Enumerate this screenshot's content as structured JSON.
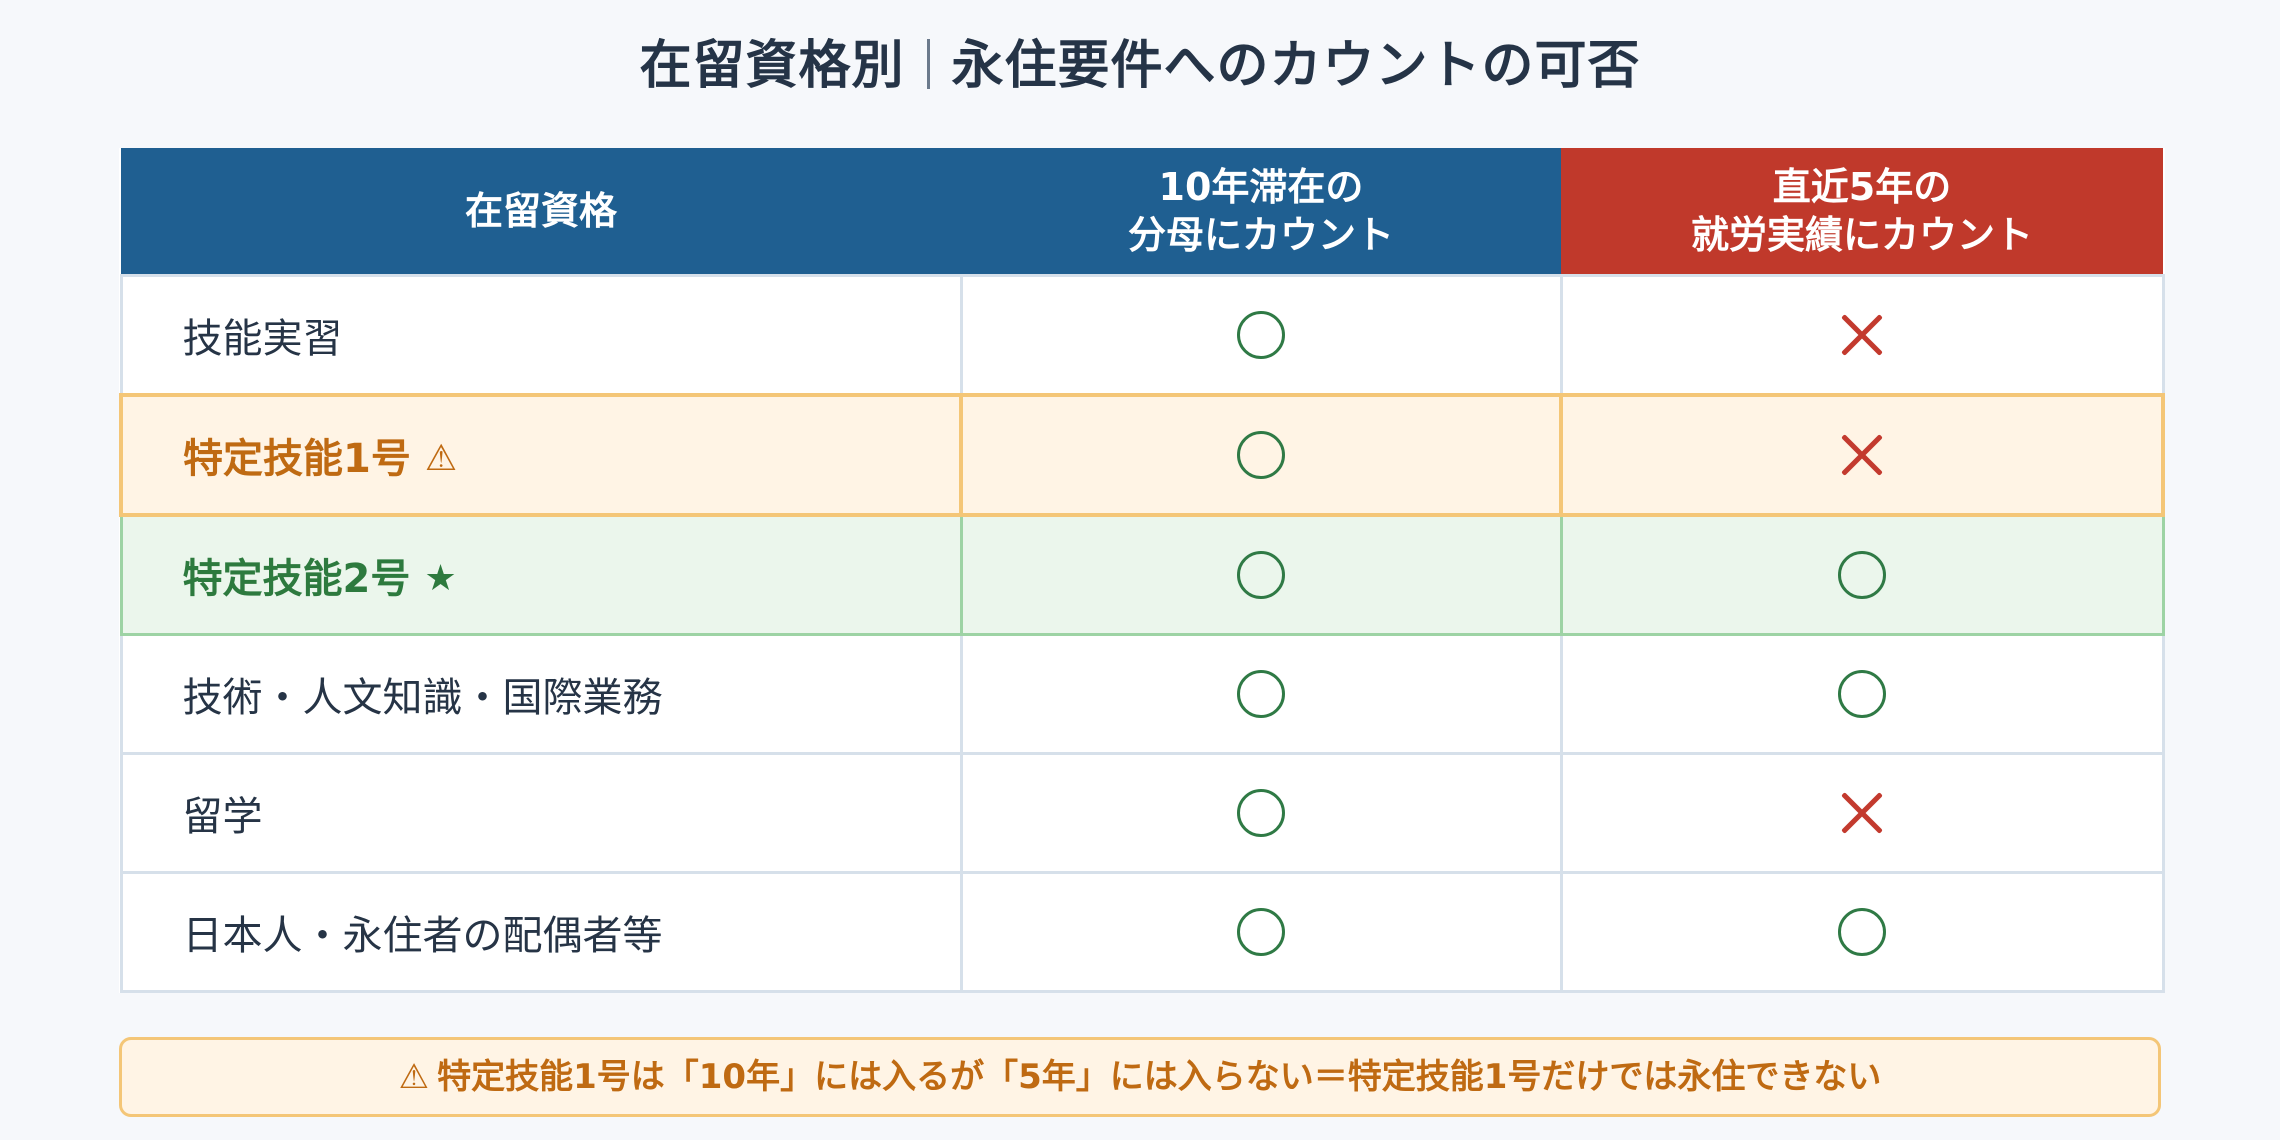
{
  "title": {
    "left": "在留資格別",
    "right": "永住要件へのカウントの可否"
  },
  "table": {
    "headers": [
      {
        "lines": [
          "在留資格"
        ],
        "color": "#1f5f91"
      },
      {
        "lines": [
          "10年滞在の",
          "分母にカウント"
        ],
        "color": "#1f5f91"
      },
      {
        "lines": [
          "直近5年の",
          "就労実績にカウント"
        ],
        "color": "#c0392b"
      }
    ],
    "rows": [
      {
        "name": "技能実習",
        "badge": "",
        "ten_year": "○",
        "five_year": "×",
        "style": "normal"
      },
      {
        "name": "特定技能1号",
        "badge": "⚠",
        "ten_year": "○",
        "five_year": "×",
        "style": "warn"
      },
      {
        "name": "特定技能2号",
        "badge": "★",
        "ten_year": "○",
        "five_year": "○",
        "style": "good"
      },
      {
        "name": "技術・人文知識・国際業務",
        "badge": "",
        "ten_year": "○",
        "five_year": "○",
        "style": "normal"
      },
      {
        "name": "留学",
        "badge": "",
        "ten_year": "○",
        "five_year": "×",
        "style": "normal"
      },
      {
        "name": "日本人・永住者の配偶者等",
        "badge": "",
        "ten_year": "○",
        "five_year": "○",
        "style": "normal"
      }
    ]
  },
  "note": {
    "icon": "⚠",
    "text": "特定技能1号は「10年」には入るが「5年」には入らない＝特定技能1号だけでは永住できない"
  },
  "colors": {
    "header_blue": "#1f5f91",
    "header_red": "#c0392b",
    "circle_green": "#2f7a45",
    "cross_red": "#c33a2e",
    "warn_orange": "#bf6a12",
    "good_green": "#2d7a3e"
  }
}
